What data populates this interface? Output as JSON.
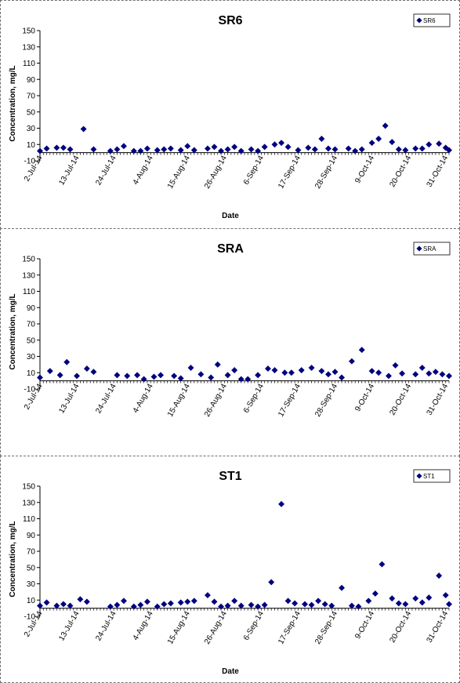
{
  "chart_data": [
    {
      "type": "scatter",
      "title": "SR6",
      "xlabel": "Date",
      "ylabel": "Concentration, mg/L",
      "ylim": [
        -10,
        150
      ],
      "yticks": [
        -10,
        10,
        30,
        50,
        70,
        90,
        110,
        130,
        150
      ],
      "xlim": [
        "2014-07-02",
        "2014-11-01"
      ],
      "xticks": [
        "2-Jul-14",
        "13-Jul-14",
        "24-Jul-14",
        "4-Aug-14",
        "15-Aug-14",
        "26-Aug-14",
        "6-Sep-14",
        "17-Sep-14",
        "28-Sep-14",
        "9-Oct-14",
        "20-Oct-14",
        "31-Oct-14"
      ],
      "legend": "top-right",
      "grid": false,
      "marker_color": "#000080",
      "series": [
        {
          "name": "SR6",
          "x": [
            "2014-07-02",
            "2014-07-04",
            "2014-07-07",
            "2014-07-09",
            "2014-07-11",
            "2014-07-15",
            "2014-07-18",
            "2014-07-23",
            "2014-07-25",
            "2014-07-27",
            "2014-07-30",
            "2014-08-01",
            "2014-08-03",
            "2014-08-06",
            "2014-08-08",
            "2014-08-10",
            "2014-08-13",
            "2014-08-15",
            "2014-08-17",
            "2014-08-21",
            "2014-08-23",
            "2014-08-25",
            "2014-08-27",
            "2014-08-29",
            "2014-08-31",
            "2014-09-03",
            "2014-09-05",
            "2014-09-07",
            "2014-09-10",
            "2014-09-12",
            "2014-09-14",
            "2014-09-17",
            "2014-09-20",
            "2014-09-22",
            "2014-09-24",
            "2014-09-26",
            "2014-09-28",
            "2014-10-02",
            "2014-10-04",
            "2014-10-06",
            "2014-10-09",
            "2014-10-11",
            "2014-10-13",
            "2014-10-15",
            "2014-10-17",
            "2014-10-19",
            "2014-10-22",
            "2014-10-24",
            "2014-10-26",
            "2014-10-29",
            "2014-10-31",
            "2014-11-01"
          ],
          "y": [
            2,
            5,
            6,
            6,
            4,
            29,
            4,
            2,
            4,
            8,
            2,
            2,
            5,
            3,
            4,
            5,
            3,
            8,
            3,
            5,
            7,
            2,
            4,
            7,
            2,
            4,
            2,
            7,
            10,
            12,
            7,
            3,
            6,
            4,
            17,
            5,
            4,
            5,
            2,
            4,
            12,
            17,
            33,
            13,
            4,
            3,
            5,
            5,
            10,
            11,
            6,
            3
          ]
        }
      ]
    },
    {
      "type": "scatter",
      "title": "SRA",
      "xlabel": "",
      "ylabel": "Concentration, mg/L",
      "ylim": [
        -10,
        150
      ],
      "yticks": [
        -10,
        10,
        30,
        50,
        70,
        90,
        110,
        130,
        150
      ],
      "xlim": [
        "2014-07-02",
        "2014-11-01"
      ],
      "xticks": [
        "2-Jul-14",
        "13-Jul-14",
        "24-Jul-14",
        "4-Aug-14",
        "15-Aug-14",
        "26-Aug-14",
        "6-Sep-14",
        "17-Sep-14",
        "28-Sep-14",
        "9-Oct-14",
        "20-Oct-14",
        "31-Oct-14"
      ],
      "legend": "top-right",
      "grid": false,
      "marker_color": "#000080",
      "series": [
        {
          "name": "SRA",
          "x": [
            "2014-07-02",
            "2014-07-05",
            "2014-07-08",
            "2014-07-10",
            "2014-07-13",
            "2014-07-16",
            "2014-07-18",
            "2014-07-25",
            "2014-07-28",
            "2014-07-31",
            "2014-08-02",
            "2014-08-05",
            "2014-08-07",
            "2014-08-11",
            "2014-08-13",
            "2014-08-16",
            "2014-08-19",
            "2014-08-22",
            "2014-08-24",
            "2014-08-27",
            "2014-08-29",
            "2014-08-31",
            "2014-09-02",
            "2014-09-05",
            "2014-09-08",
            "2014-09-10",
            "2014-09-13",
            "2014-09-15",
            "2014-09-18",
            "2014-09-21",
            "2014-09-24",
            "2014-09-26",
            "2014-09-28",
            "2014-09-30",
            "2014-10-03",
            "2014-10-06",
            "2014-10-09",
            "2014-10-11",
            "2014-10-14",
            "2014-10-16",
            "2014-10-18",
            "2014-10-22",
            "2014-10-24",
            "2014-10-26",
            "2014-10-28",
            "2014-10-30",
            "2014-11-01"
          ],
          "y": [
            4,
            12,
            7,
            23,
            6,
            15,
            11,
            7,
            6,
            7,
            2,
            5,
            7,
            6,
            3,
            16,
            8,
            4,
            20,
            7,
            13,
            2,
            2,
            7,
            15,
            13,
            10,
            10,
            13,
            16,
            12,
            8,
            11,
            4,
            24,
            38,
            12,
            10,
            6,
            19,
            9,
            8,
            16,
            9,
            11,
            8,
            6
          ]
        }
      ]
    },
    {
      "type": "scatter",
      "title": "ST1",
      "xlabel": "Date",
      "ylabel": "Concentration, mg/L",
      "ylim": [
        -10,
        150
      ],
      "yticks": [
        -10,
        10,
        30,
        50,
        70,
        90,
        110,
        130,
        150
      ],
      "xlim": [
        "2014-07-02",
        "2014-11-01"
      ],
      "xticks": [
        "2-Jul-14",
        "13-Jul-14",
        "24-Jul-14",
        "4-Aug-14",
        "15-Aug-14",
        "26-Aug-14",
        "6-Sep-14",
        "17-Sep-14",
        "28-Sep-14",
        "9-Oct-14",
        "20-Oct-14",
        "31-Oct-14"
      ],
      "legend": "top-right",
      "grid": false,
      "marker_color": "#000080",
      "series": [
        {
          "name": "ST1",
          "x": [
            "2014-07-02",
            "2014-07-04",
            "2014-07-07",
            "2014-07-09",
            "2014-07-11",
            "2014-07-14",
            "2014-07-16",
            "2014-07-23",
            "2014-07-25",
            "2014-07-27",
            "2014-07-30",
            "2014-08-01",
            "2014-08-03",
            "2014-08-06",
            "2014-08-08",
            "2014-08-10",
            "2014-08-13",
            "2014-08-15",
            "2014-08-17",
            "2014-08-21",
            "2014-08-23",
            "2014-08-25",
            "2014-08-27",
            "2014-08-29",
            "2014-08-31",
            "2014-09-03",
            "2014-09-05",
            "2014-09-07",
            "2014-09-09",
            "2014-09-12",
            "2014-09-14",
            "2014-09-16",
            "2014-09-19",
            "2014-09-21",
            "2014-09-23",
            "2014-09-25",
            "2014-09-27",
            "2014-09-30",
            "2014-10-03",
            "2014-10-05",
            "2014-10-08",
            "2014-10-10",
            "2014-10-12",
            "2014-10-15",
            "2014-10-17",
            "2014-10-19",
            "2014-10-22",
            "2014-10-24",
            "2014-10-26",
            "2014-10-29",
            "2014-10-31",
            "2014-11-01"
          ],
          "y": [
            3,
            7,
            3,
            5,
            3,
            11,
            8,
            2,
            4,
            9,
            2,
            4,
            8,
            2,
            5,
            6,
            7,
            8,
            9,
            16,
            8,
            2,
            3,
            9,
            3,
            4,
            2,
            4,
            32,
            128,
            9,
            6,
            5,
            4,
            9,
            5,
            3,
            25,
            3,
            2,
            9,
            18,
            54,
            12,
            6,
            5,
            12,
            7,
            13,
            40,
            16,
            5
          ]
        }
      ]
    }
  ]
}
